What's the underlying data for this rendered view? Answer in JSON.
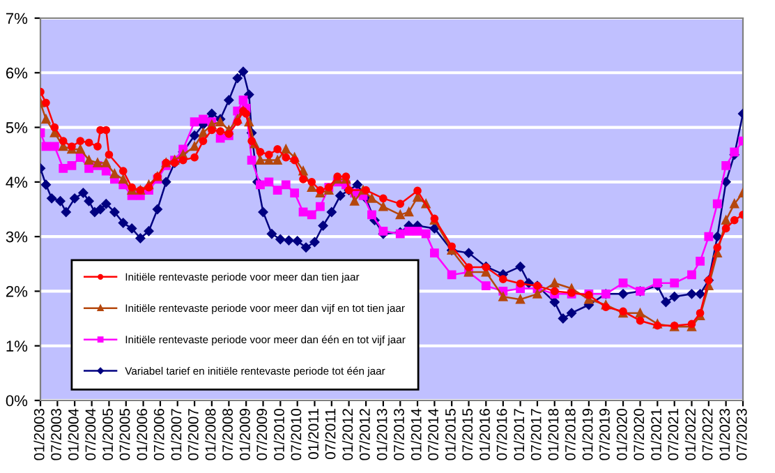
{
  "chart_data": {
    "type": "line",
    "xlim": [
      "2003-01",
      "2023-07"
    ],
    "xticks": [
      {
        "value": "2003-01",
        "label": "01/2003"
      },
      {
        "value": "2003-07",
        "label": "07/2003"
      },
      {
        "value": "2004-01",
        "label": "01/2004"
      },
      {
        "value": "2004-07",
        "label": "07/2004"
      },
      {
        "value": "2005-01",
        "label": "01/2005"
      },
      {
        "value": "2005-07",
        "label": "07/2005"
      },
      {
        "value": "2006-01",
        "label": "01/2006"
      },
      {
        "value": "2006-07",
        "label": "07/2006"
      },
      {
        "value": "2007-01",
        "label": "01/2007"
      },
      {
        "value": "2007-07",
        "label": "07/2007"
      },
      {
        "value": "2008-01",
        "label": "01/2008"
      },
      {
        "value": "2008-07",
        "label": "07/2008"
      },
      {
        "value": "2009-01",
        "label": "01/2009"
      },
      {
        "value": "2009-07",
        "label": "07/2009"
      },
      {
        "value": "2010-01",
        "label": "01/2010"
      },
      {
        "value": "2010-07",
        "label": "07/2010"
      },
      {
        "value": "2011-01",
        "label": "01/2011"
      },
      {
        "value": "2011-07",
        "label": "07/2011"
      },
      {
        "value": "2012-01",
        "label": "01/2012"
      },
      {
        "value": "2012-07",
        "label": "07/2012"
      },
      {
        "value": "2013-01",
        "label": "01/2013"
      },
      {
        "value": "2013-07",
        "label": "07/2013"
      },
      {
        "value": "2014-01",
        "label": "01/2014"
      },
      {
        "value": "2014-07",
        "label": "07/2014"
      },
      {
        "value": "2015-01",
        "label": "01/2015"
      },
      {
        "value": "2015-07",
        "label": "07/2015"
      },
      {
        "value": "2016-01",
        "label": "01/2016"
      },
      {
        "value": "2016-07",
        "label": "07/2016"
      },
      {
        "value": "2017-01",
        "label": "01/2017"
      },
      {
        "value": "2017-07",
        "label": "07/2017"
      },
      {
        "value": "2018-01",
        "label": "01/2018"
      },
      {
        "value": "2018-07",
        "label": "07/2018"
      },
      {
        "value": "2019-01",
        "label": "01/2019"
      },
      {
        "value": "2019-07",
        "label": "07/2019"
      },
      {
        "value": "2020-01",
        "label": "01/2020"
      },
      {
        "value": "2020-07",
        "label": "07/2020"
      },
      {
        "value": "2021-01",
        "label": "01/2021"
      },
      {
        "value": "2021-07",
        "label": "07/2021"
      },
      {
        "value": "2022-01",
        "label": "01/2022"
      },
      {
        "value": "2022-07",
        "label": "07/2022"
      },
      {
        "value": "2023-01",
        "label": "01/2023"
      },
      {
        "value": "2023-07",
        "label": "07/2023"
      }
    ],
    "ylim": [
      0,
      7
    ],
    "yticks": [
      {
        "value": 0,
        "label": "0%"
      },
      {
        "value": 1,
        "label": "1%"
      },
      {
        "value": 2,
        "label": "2%"
      },
      {
        "value": 3,
        "label": "3%"
      },
      {
        "value": 4,
        "label": "4%"
      },
      {
        "value": 5,
        "label": "5%"
      },
      {
        "value": 6,
        "label": "6%"
      },
      {
        "value": 7,
        "label": "7%"
      }
    ],
    "grid": "y",
    "legend": "bottom left",
    "line_style": "solid",
    "series": [
      {
        "name": "Initiële rentevaste periode voor meer dan tien jaar",
        "color": "#ff0000",
        "marker": "circle",
        "x": [
          "2003-01",
          "2003-03",
          "2003-06",
          "2003-09",
          "2003-12",
          "2004-03",
          "2004-06",
          "2004-09",
          "2004-10",
          "2004-12",
          "2005-01",
          "2005-06",
          "2005-09",
          "2005-12",
          "2006-03",
          "2006-06",
          "2006-09",
          "2006-12",
          "2007-03",
          "2007-07",
          "2007-10",
          "2008-01",
          "2008-04",
          "2008-07",
          "2008-10",
          "2008-12",
          "2009-01",
          "2009-03",
          "2009-06",
          "2009-09",
          "2009-12",
          "2010-03",
          "2010-06",
          "2010-09",
          "2010-12",
          "2011-03",
          "2011-06",
          "2011-09",
          "2011-12",
          "2012-01",
          "2012-07",
          "2013-01",
          "2013-07",
          "2014-01",
          "2014-07",
          "2015-01",
          "2015-07",
          "2016-01",
          "2016-07",
          "2017-01",
          "2017-07",
          "2018-01",
          "2018-07",
          "2019-01",
          "2019-07",
          "2020-01",
          "2020-07",
          "2021-01",
          "2021-07",
          "2022-01",
          "2022-04",
          "2022-07",
          "2022-10",
          "2023-01",
          "2023-04",
          "2023-07"
        ],
        "values": [
          5.65,
          5.45,
          5.0,
          4.75,
          4.65,
          4.75,
          4.72,
          4.65,
          4.95,
          4.95,
          4.5,
          4.2,
          3.9,
          3.85,
          3.9,
          4.1,
          4.35,
          4.35,
          4.4,
          4.45,
          4.75,
          4.95,
          4.93,
          4.88,
          5.1,
          5.3,
          5.25,
          4.75,
          4.55,
          4.5,
          4.6,
          4.45,
          4.4,
          4.05,
          4.0,
          3.85,
          3.9,
          4.1,
          4.1,
          3.85,
          3.85,
          3.7,
          3.6,
          3.84,
          3.33,
          2.82,
          2.44,
          2.44,
          2.22,
          2.14,
          2.1,
          2.0,
          1.97,
          1.93,
          1.71,
          1.63,
          1.46,
          1.37,
          1.37,
          1.4,
          1.6,
          2.2,
          2.8,
          3.15,
          3.3,
          3.4
        ]
      },
      {
        "name": "Initiële rentevaste periode voor meer dan vijf en tot tien jaar",
        "color": "#b5470d",
        "marker": "triangle",
        "x": [
          "2003-01",
          "2003-03",
          "2003-06",
          "2003-09",
          "2003-12",
          "2004-03",
          "2004-06",
          "2004-09",
          "2004-12",
          "2005-03",
          "2005-06",
          "2005-09",
          "2005-12",
          "2006-03",
          "2006-06",
          "2006-09",
          "2006-12",
          "2007-03",
          "2007-07",
          "2007-10",
          "2008-01",
          "2008-04",
          "2008-07",
          "2008-10",
          "2008-12",
          "2009-02",
          "2009-04",
          "2009-06",
          "2009-09",
          "2009-12",
          "2010-03",
          "2010-06",
          "2010-09",
          "2010-12",
          "2011-03",
          "2011-06",
          "2011-09",
          "2011-12",
          "2012-03",
          "2012-06",
          "2012-09",
          "2013-01",
          "2013-07",
          "2013-10",
          "2014-01",
          "2014-04",
          "2014-07",
          "2015-01",
          "2015-07",
          "2016-01",
          "2016-07",
          "2017-01",
          "2017-07",
          "2018-01",
          "2018-07",
          "2019-01",
          "2019-07",
          "2020-01",
          "2020-07",
          "2021-01",
          "2021-07",
          "2022-01",
          "2022-04",
          "2022-07",
          "2022-10",
          "2023-01",
          "2023-04",
          "2023-07"
        ],
        "values": [
          5.45,
          5.15,
          4.9,
          4.65,
          4.6,
          4.6,
          4.4,
          4.35,
          4.35,
          4.15,
          4.05,
          3.85,
          3.85,
          3.95,
          4.1,
          4.35,
          4.4,
          4.5,
          4.65,
          4.9,
          5.05,
          5.1,
          4.95,
          5.15,
          5.3,
          5.1,
          4.7,
          4.4,
          4.4,
          4.4,
          4.6,
          4.45,
          4.2,
          3.9,
          3.8,
          3.85,
          4.05,
          4.05,
          3.65,
          3.85,
          3.7,
          3.55,
          3.4,
          3.45,
          3.72,
          3.6,
          3.3,
          2.75,
          2.35,
          2.35,
          1.9,
          1.85,
          1.95,
          2.15,
          2.05,
          1.85,
          1.75,
          1.6,
          1.6,
          1.4,
          1.35,
          1.35,
          1.55,
          2.1,
          2.7,
          3.3,
          3.6,
          3.8
        ]
      },
      {
        "name": "Initiële rentevaste periode voor meer dan één en tot vijf jaar",
        "color": "#ff00ff",
        "marker": "square",
        "x": [
          "2003-01",
          "2003-03",
          "2003-06",
          "2003-09",
          "2003-12",
          "2004-03",
          "2004-06",
          "2004-09",
          "2004-12",
          "2005-03",
          "2005-06",
          "2005-09",
          "2005-12",
          "2006-03",
          "2006-06",
          "2006-09",
          "2006-12",
          "2007-03",
          "2007-07",
          "2007-10",
          "2008-01",
          "2008-04",
          "2008-07",
          "2008-10",
          "2008-12",
          "2009-01",
          "2009-03",
          "2009-06",
          "2009-09",
          "2009-12",
          "2010-03",
          "2010-06",
          "2010-09",
          "2010-12",
          "2011-03",
          "2011-06",
          "2011-09",
          "2011-12",
          "2012-03",
          "2012-06",
          "2012-09",
          "2013-01",
          "2013-07",
          "2013-10",
          "2014-01",
          "2014-04",
          "2014-07",
          "2015-01",
          "2015-07",
          "2016-01",
          "2016-07",
          "2017-01",
          "2017-07",
          "2018-01",
          "2018-07",
          "2019-01",
          "2019-07",
          "2020-01",
          "2020-07",
          "2021-01",
          "2021-07",
          "2022-01",
          "2022-04",
          "2022-07",
          "2022-10",
          "2023-01",
          "2023-04",
          "2023-07"
        ],
        "values": [
          4.9,
          4.65,
          4.65,
          4.25,
          4.3,
          4.45,
          4.25,
          4.3,
          4.2,
          4.05,
          3.95,
          3.75,
          3.75,
          3.85,
          4.05,
          4.3,
          4.4,
          4.6,
          5.1,
          5.15,
          5.1,
          4.8,
          4.85,
          5.3,
          5.5,
          5.35,
          4.4,
          3.95,
          4.0,
          3.85,
          3.95,
          3.8,
          3.45,
          3.4,
          3.55,
          3.9,
          4.0,
          3.95,
          3.8,
          3.75,
          3.4,
          3.1,
          3.05,
          3.1,
          3.1,
          3.05,
          2.7,
          2.3,
          2.35,
          2.1,
          2.0,
          2.05,
          2.05,
          1.95,
          1.95,
          1.95,
          1.95,
          2.15,
          2.0,
          2.15,
          2.15,
          2.3,
          2.55,
          3.0,
          3.6,
          4.3,
          4.55,
          4.75
        ]
      },
      {
        "name": "Variabel tarief en initiële rentevaste periode tot één jaar",
        "color": "#000080",
        "marker": "diamond",
        "x": [
          "2003-01",
          "2003-03",
          "2003-05",
          "2003-08",
          "2003-10",
          "2004-01",
          "2004-04",
          "2004-06",
          "2004-08",
          "2004-10",
          "2004-12",
          "2005-03",
          "2005-06",
          "2005-09",
          "2005-12",
          "2006-03",
          "2006-06",
          "2006-09",
          "2006-12",
          "2007-03",
          "2007-07",
          "2007-10",
          "2008-01",
          "2008-04",
          "2008-07",
          "2008-10",
          "2008-12",
          "2009-02",
          "2009-03",
          "2009-05",
          "2009-07",
          "2009-10",
          "2010-01",
          "2010-04",
          "2010-07",
          "2010-10",
          "2011-01",
          "2011-04",
          "2011-07",
          "2011-10",
          "2012-01",
          "2012-04",
          "2012-07",
          "2012-10",
          "2013-01",
          "2013-07",
          "2013-10",
          "2014-01",
          "2014-07",
          "2015-01",
          "2015-07",
          "2016-01",
          "2016-07",
          "2017-01",
          "2017-04",
          "2017-07",
          "2018-01",
          "2018-04",
          "2018-07",
          "2019-01",
          "2019-07",
          "2020-01",
          "2020-07",
          "2021-01",
          "2021-04",
          "2021-07",
          "2022-01",
          "2022-04",
          "2022-07",
          "2022-10",
          "2023-01",
          "2023-04",
          "2023-07"
        ],
        "values": [
          4.25,
          3.95,
          3.7,
          3.65,
          3.45,
          3.7,
          3.8,
          3.65,
          3.45,
          3.5,
          3.6,
          3.45,
          3.25,
          3.15,
          2.97,
          3.1,
          3.5,
          4.0,
          4.35,
          4.55,
          4.85,
          5.05,
          5.25,
          5.15,
          5.5,
          5.9,
          6.02,
          5.6,
          4.9,
          4.0,
          3.45,
          3.05,
          2.95,
          2.93,
          2.92,
          2.8,
          2.9,
          3.2,
          3.45,
          3.75,
          3.85,
          3.95,
          3.7,
          3.3,
          3.05,
          3.08,
          3.2,
          3.2,
          3.15,
          2.75,
          2.7,
          2.45,
          2.31,
          2.45,
          2.15,
          2.1,
          1.8,
          1.5,
          1.6,
          1.75,
          1.95,
          1.95,
          2.0,
          2.1,
          1.8,
          1.9,
          1.95,
          1.95,
          2.2,
          3.0,
          4.0,
          4.5,
          5.25
        ]
      }
    ]
  }
}
